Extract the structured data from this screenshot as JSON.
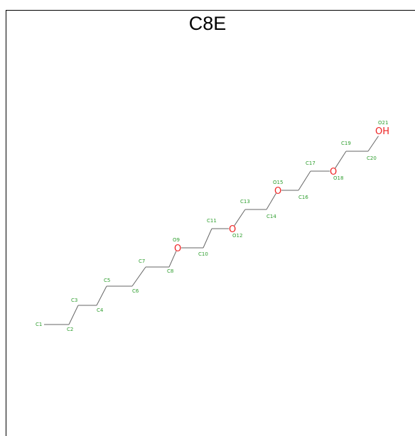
{
  "title": "C8E",
  "colors": {
    "bond": "#666666",
    "carbon_label": "#2e9e2e",
    "oxygen": "#ee2222"
  },
  "oxygen_symbol": "O",
  "hydroxyl_label": "OH",
  "atoms": [
    "C1",
    "C2",
    "C3",
    "C4",
    "C5",
    "C6",
    "C7",
    "C8",
    "O9",
    "C10",
    "C11",
    "O12",
    "C13",
    "C14",
    "O15",
    "C16",
    "C17",
    "O18",
    "C19",
    "C20",
    "O21"
  ]
}
